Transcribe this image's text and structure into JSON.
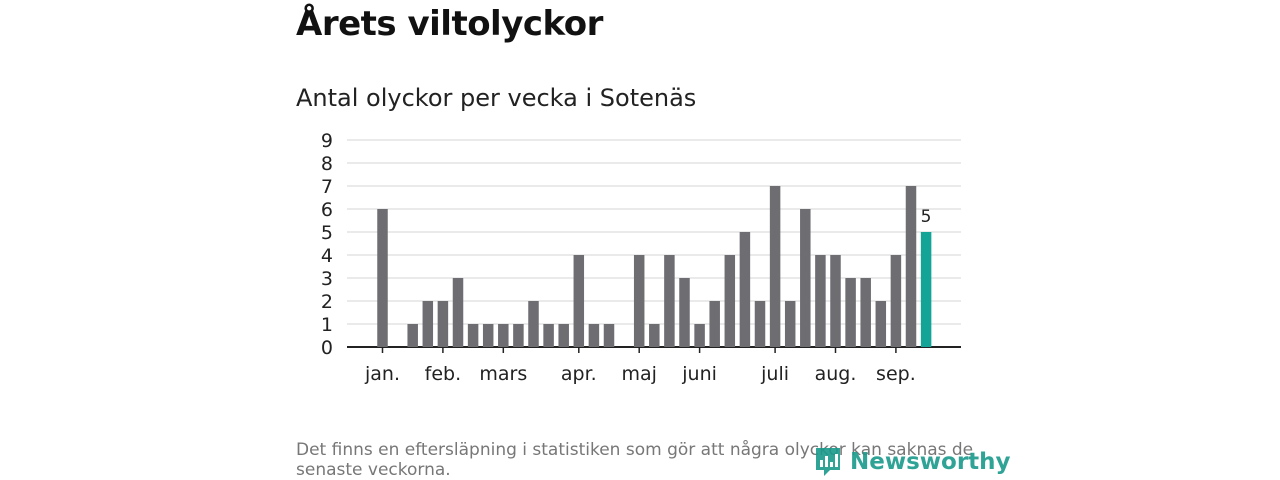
{
  "title": "Årets viltolyckor",
  "subtitle": "Antal olyckor per vecka i Sotenäs",
  "footnote": "Det finns en eftersläpning i statistiken som gör att några olyckor kan saknas de senaste veckorna.",
  "brand": "Newsworthy",
  "colors": {
    "bar": "#6e6d72",
    "highlight": "#13a397",
    "grid": "#dddddd",
    "axis": "#222222"
  },
  "chart_data": {
    "type": "bar",
    "title": "Antal olyckor per vecka i Sotenäs",
    "ylim": [
      0,
      9
    ],
    "yticks": [
      0,
      1,
      2,
      3,
      4,
      5,
      6,
      7,
      8,
      9
    ],
    "grid": true,
    "values": [
      6,
      0,
      1,
      2,
      2,
      3,
      1,
      1,
      1,
      1,
      2,
      1,
      1,
      4,
      1,
      1,
      0,
      4,
      1,
      4,
      3,
      1,
      2,
      4,
      5,
      2,
      7,
      2,
      6,
      4,
      4,
      3,
      3,
      2,
      4,
      7,
      5
    ],
    "highlight_index": 36,
    "highlight_label": "5",
    "month_labels": [
      {
        "label": "jan.",
        "index": 0
      },
      {
        "label": "feb.",
        "index": 4
      },
      {
        "label": "mars",
        "index": 8
      },
      {
        "label": "apr.",
        "index": 13
      },
      {
        "label": "maj",
        "index": 17
      },
      {
        "label": "juni",
        "index": 21
      },
      {
        "label": "juli",
        "index": 26
      },
      {
        "label": "aug.",
        "index": 30
      },
      {
        "label": "sep.",
        "index": 34
      }
    ]
  }
}
